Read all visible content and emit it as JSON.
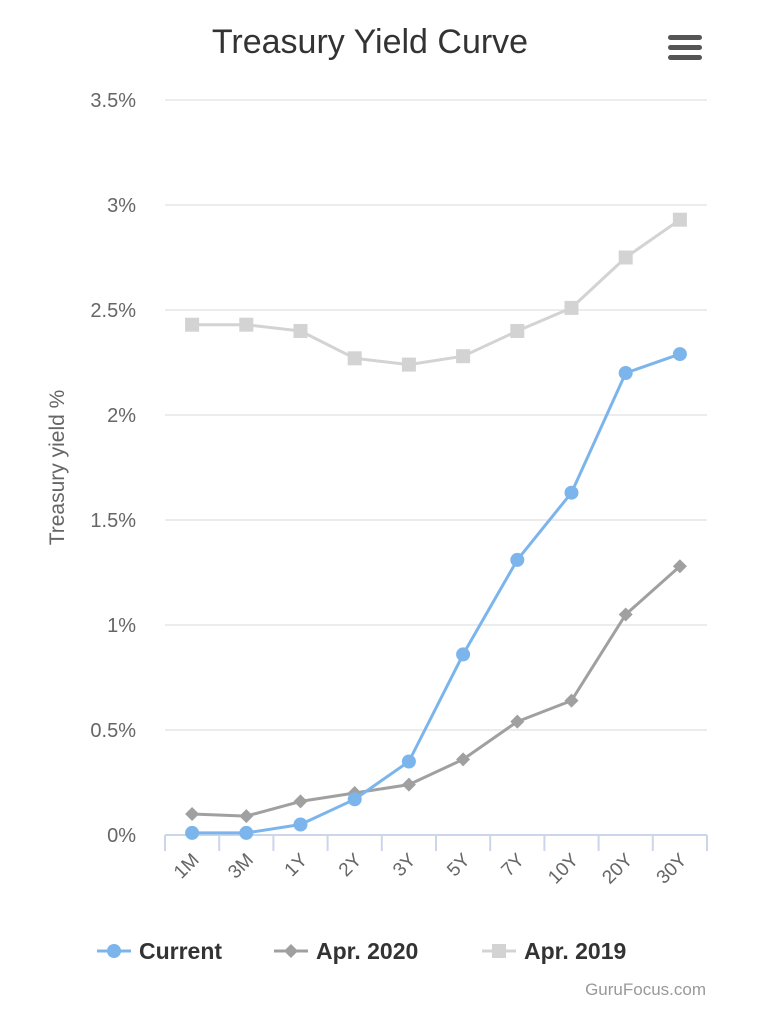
{
  "menu": {
    "icon": "hamburger-menu-icon"
  },
  "credits": {
    "text": "GuruFocus.com"
  },
  "chart_data": {
    "type": "line",
    "title": "Treasury Yield Curve",
    "xlabel": "",
    "ylabel": "Treasury yield %",
    "categories": [
      "1M",
      "3M",
      "1Y",
      "2Y",
      "3Y",
      "5Y",
      "7Y",
      "10Y",
      "20Y",
      "30Y"
    ],
    "ylim": [
      0,
      3.5
    ],
    "yticks": [
      0,
      0.5,
      1,
      1.5,
      2,
      2.5,
      3,
      3.5
    ],
    "ytick_labels": [
      "0%",
      "0.5%",
      "1%",
      "1.5%",
      "2%",
      "2.5%",
      "3%",
      "3.5%"
    ],
    "grid": true,
    "legend_position": "bottom",
    "series": [
      {
        "name": "Current",
        "color": "#7cb5ec",
        "marker": "circle",
        "values": [
          0.01,
          0.01,
          0.05,
          0.17,
          0.35,
          0.86,
          1.31,
          1.63,
          2.2,
          2.29
        ]
      },
      {
        "name": "Apr. 2020",
        "color": "#a0a0a0",
        "marker": "diamond",
        "values": [
          0.1,
          0.09,
          0.16,
          0.2,
          0.24,
          0.36,
          0.54,
          0.64,
          1.05,
          1.28
        ]
      },
      {
        "name": "Apr. 2019",
        "color": "#d3d3d3",
        "marker": "square",
        "values": [
          2.43,
          2.43,
          2.4,
          2.27,
          2.24,
          2.28,
          2.4,
          2.51,
          2.75,
          2.93
        ]
      }
    ]
  }
}
